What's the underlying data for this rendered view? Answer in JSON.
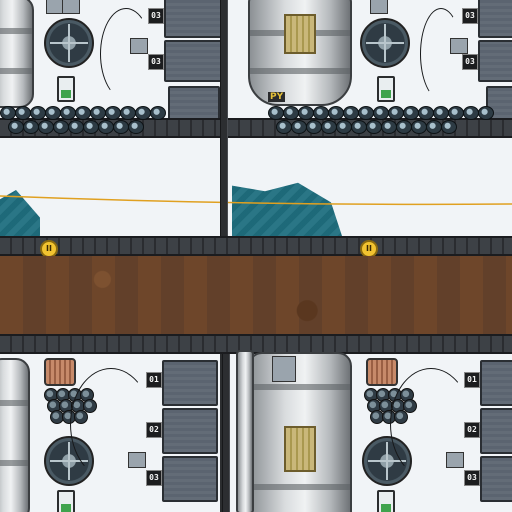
{
  "board": {
    "road_markers": [
      {
        "label": "II",
        "name": "road-marker-left"
      },
      {
        "label": "II",
        "name": "road-marker-right"
      }
    ],
    "tiles": {
      "top_left": {
        "building_numbers": [
          "03",
          "03"
        ]
      },
      "top_right": {
        "building_numbers": [
          "03",
          "03"
        ],
        "sign_text": "PY"
      },
      "bottom_left": {
        "building_numbers": [
          "01",
          "02",
          "03"
        ]
      },
      "bottom_right": {
        "building_numbers": [
          "01",
          "02",
          "03"
        ]
      }
    },
    "colors": {
      "snow": "#f1f4f7",
      "water": "#1f6f7f",
      "dirt": "#6b4428",
      "rail": "#2f3236",
      "coin": "#f2c330",
      "power_line": "#e0a020"
    }
  }
}
